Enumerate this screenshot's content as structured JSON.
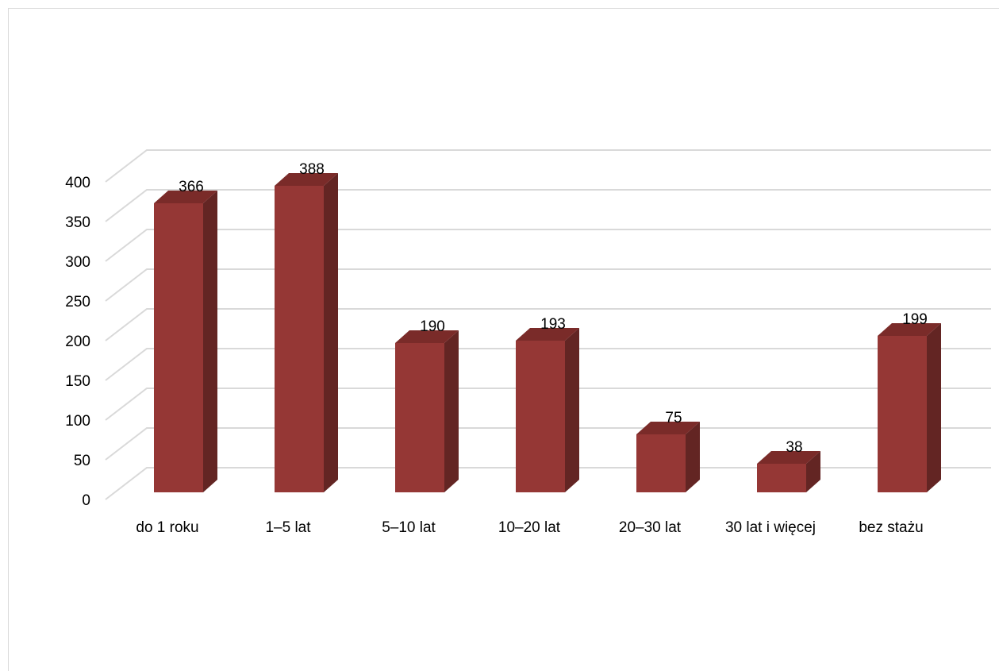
{
  "chart_data": {
    "type": "bar",
    "style": "3d-column",
    "categories": [
      "do 1 roku",
      "1–5 lat",
      "5–10 lat",
      "10–20 lat",
      "20–30 lat",
      "30 lat i więcej",
      "bez stażu"
    ],
    "values": [
      366,
      388,
      190,
      193,
      75,
      38,
      199
    ],
    "data_labels": [
      "366",
      "388",
      "190",
      "193",
      "75",
      "38",
      "199"
    ],
    "title": "",
    "xlabel": "",
    "ylabel": "",
    "ylim": [
      0,
      400
    ],
    "yticks": [
      "0",
      "50",
      "100",
      "150",
      "200",
      "250",
      "300",
      "350",
      "400"
    ],
    "grid": true,
    "legend": "none",
    "colors": {
      "bar_front": "#953735",
      "bar_side": "#632523",
      "bar_top": "#7a2b29",
      "gridline": "#d9d9d9"
    }
  }
}
